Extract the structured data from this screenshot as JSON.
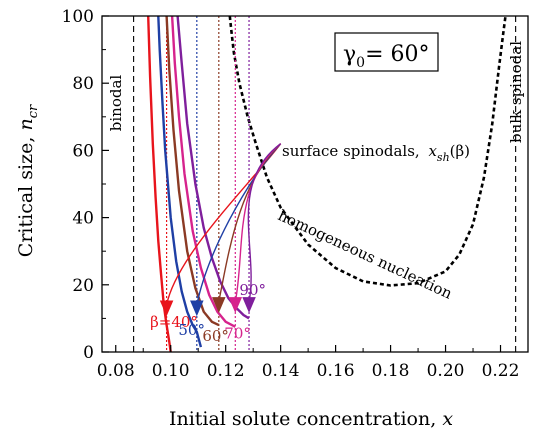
{
  "chart_data": {
    "type": "line",
    "xlabel": "Initial solute concentration, x",
    "ylabel": "Critical size, n_cr",
    "xlim": [
      0.075,
      0.23
    ],
    "ylim": [
      0,
      100
    ],
    "xticks": [
      "0.08",
      "0.10",
      "0.12",
      "0.14",
      "0.16",
      "0.18",
      "0.20",
      "0.22"
    ],
    "yticks": [
      "0",
      "20",
      "40",
      "60",
      "80",
      "100"
    ],
    "grid": false,
    "gamma_box": {
      "symbol": "γ",
      "sub": "0",
      "value": "= 60°"
    },
    "vertical_lines": [
      {
        "label": "binodal",
        "x": 0.0865
      },
      {
        "label": "bulk spinodal",
        "x": 0.2255
      }
    ],
    "spinodal_annotation": {
      "text": "surface spinodals,",
      "math_x": "x",
      "math_sub": "sh",
      "math_tail": "(β)",
      "point": [
        0.14,
        62
      ]
    },
    "homogeneous_label": "homogeneous nucleation",
    "homogeneous_nucleation": {
      "x": [
        0.1215,
        0.122,
        0.123,
        0.125,
        0.128,
        0.131,
        0.135,
        0.14,
        0.15,
        0.16,
        0.17,
        0.18,
        0.19,
        0.2,
        0.205,
        0.21,
        0.214,
        0.217,
        0.2195,
        0.221,
        0.2218
      ],
      "y": [
        100,
        96,
        89,
        80,
        70,
        62,
        52,
        43,
        32,
        25,
        21,
        19.8,
        20.5,
        24,
        29,
        38,
        52,
        68,
        85,
        95,
        100
      ]
    },
    "series": [
      {
        "name": "β=40°",
        "color": "#e8141c",
        "spinodal_x": 0.0985,
        "spinodal_y": 11,
        "x": [
          0.0918,
          0.0925,
          0.0935,
          0.0945,
          0.0955,
          0.0965,
          0.0975,
          0.0985,
          0.0995,
          0.1
        ],
        "y": [
          100,
          82,
          62,
          46,
          33,
          23,
          14,
          8,
          3,
          0
        ]
      },
      {
        "name": "50°",
        "color": "#1f3fa5",
        "spinodal_x": 0.1095,
        "spinodal_y": 11,
        "x": [
          0.0955,
          0.096,
          0.097,
          0.098,
          0.1,
          0.102,
          0.104,
          0.106,
          0.108,
          0.1095,
          0.111
        ],
        "y": [
          100,
          90,
          74,
          60,
          40,
          27,
          18,
          12,
          8,
          6,
          1.5
        ]
      },
      {
        "name": "60°",
        "color": "#8b3a24",
        "spinodal_x": 0.1175,
        "spinodal_y": 12,
        "x": [
          0.0985,
          0.0995,
          0.101,
          0.103,
          0.106,
          0.109,
          0.112,
          0.115,
          0.1175
        ],
        "y": [
          100,
          84,
          66,
          48,
          30,
          19,
          12,
          9,
          8
        ]
      },
      {
        "name": "70°",
        "color": "#d6238d",
        "spinodal_x": 0.1235,
        "spinodal_y": 12,
        "x": [
          0.1005,
          0.1015,
          0.103,
          0.105,
          0.108,
          0.111,
          0.114,
          0.117,
          0.12,
          0.1235
        ],
        "y": [
          100,
          86,
          70,
          53,
          36,
          25,
          17,
          12,
          9,
          7.5
        ]
      },
      {
        "name": "90°",
        "color": "#7f1f9c",
        "spinodal_x": 0.1285,
        "spinodal_y": 12,
        "x": [
          0.1025,
          0.104,
          0.106,
          0.109,
          0.112,
          0.115,
          0.118,
          0.121,
          0.124,
          0.1265,
          0.1285
        ],
        "y": [
          100,
          86,
          68,
          50,
          37,
          28,
          21,
          16,
          13,
          11,
          10
        ]
      }
    ],
    "series_labels": [
      {
        "name": "β=40°",
        "color": "#e8141c",
        "at": [
          0.0925,
          7.5
        ]
      },
      {
        "name": "50°",
        "color": "#1f3fa5",
        "at": [
          0.1028,
          5.0
        ]
      },
      {
        "name": "60°",
        "color": "#8b3a24",
        "at": [
          0.1115,
          3.2
        ]
      },
      {
        "name": "70°",
        "color": "#d6238d",
        "at": [
          0.1195,
          4.0
        ]
      },
      {
        "name": "90°",
        "color": "#7f1f9c",
        "at": [
          0.125,
          17.0
        ]
      }
    ]
  }
}
